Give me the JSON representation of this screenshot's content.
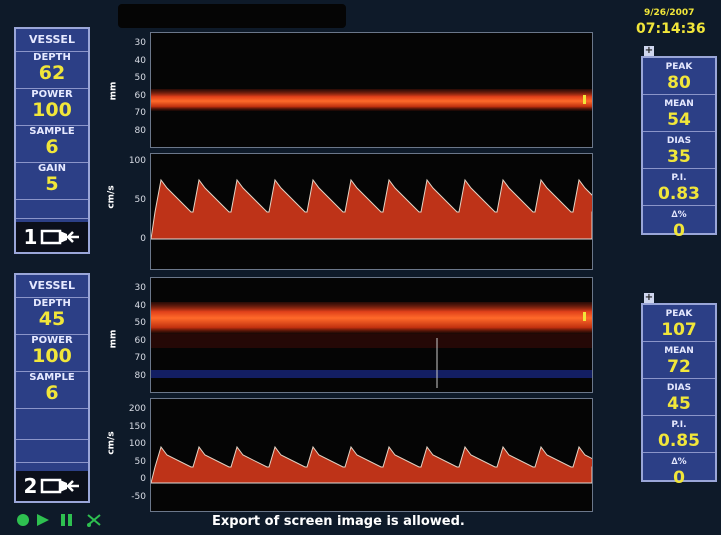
{
  "datetime": {
    "date": "9/26/2007",
    "time": "07:14:36"
  },
  "channels": [
    {
      "vessel_label": "VESSEL",
      "params": [
        {
          "label": "DEPTH",
          "value": "62"
        },
        {
          "label": "POWER",
          "value": "100"
        },
        {
          "label": "SAMPLE",
          "value": "6"
        },
        {
          "label": "GAIN",
          "value": "5"
        }
      ],
      "probe_number": "1",
      "stats": [
        {
          "label": "PEAK",
          "value": "80"
        },
        {
          "label": "MEAN",
          "value": "54"
        },
        {
          "label": "DIAS",
          "value": "35"
        },
        {
          "label": "P.I.",
          "value": "0.83"
        },
        {
          "label": "∆%",
          "value": "0"
        }
      ],
      "mmode": {
        "unit": "mm",
        "ticks": [
          "30",
          "40",
          "50",
          "60",
          "70",
          "80"
        ]
      },
      "spectrum": {
        "unit": "cm/s",
        "ticks": [
          "100",
          "50",
          "0"
        ]
      }
    },
    {
      "vessel_label": "VESSEL",
      "params": [
        {
          "label": "DEPTH",
          "value": "45"
        },
        {
          "label": "POWER",
          "value": "100"
        },
        {
          "label": "SAMPLE",
          "value": "6"
        }
      ],
      "probe_number": "2",
      "stats": [
        {
          "label": "PEAK",
          "value": "107"
        },
        {
          "label": "MEAN",
          "value": "72"
        },
        {
          "label": "DIAS",
          "value": "45"
        },
        {
          "label": "P.I.",
          "value": "0.85"
        },
        {
          "label": "∆%",
          "value": "0"
        }
      ],
      "mmode": {
        "unit": "mm",
        "ticks": [
          "30",
          "40",
          "50",
          "60",
          "70",
          "80"
        ]
      },
      "spectrum": {
        "unit": "cm/s",
        "ticks": [
          "200",
          "150",
          "100",
          "50",
          "0",
          "-50"
        ]
      }
    }
  ],
  "footer": {
    "message": "Export of screen image is allowed."
  },
  "colors": {
    "panel": "#2c3f86",
    "value": "#f1e63a",
    "flow": "#e0401a",
    "background": "#0e1a29"
  },
  "icons": {
    "record": "record-icon",
    "play": "play-icon",
    "pause": "pause-icon",
    "cut": "scissors-icon",
    "probe": "probe-icon"
  }
}
